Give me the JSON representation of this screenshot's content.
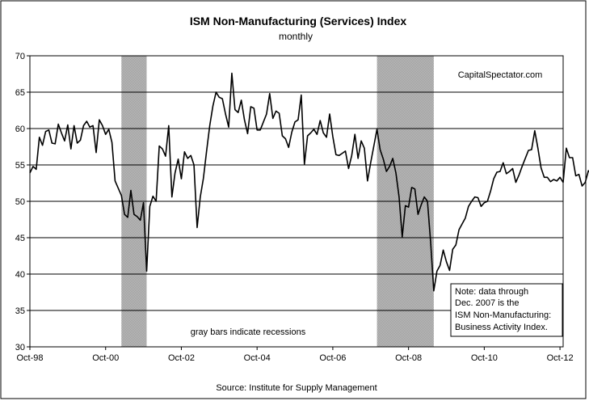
{
  "chart_data": {
    "type": "line",
    "title": "ISM Non-Manufacturing (Services) Index",
    "subtitle": "monthly",
    "source": "Source: Institute for Supply Management",
    "watermark": "CapitalSpectator.com",
    "recession_caption": "gray bars indicate recessions",
    "note_lines": [
      "Note: data through",
      "Dec. 2007 is the",
      "ISM Non-Manufacturing:",
      "Business Activity Index."
    ],
    "ylim": [
      30,
      70
    ],
    "yticks": [
      "30",
      "35",
      "40",
      "45",
      "50",
      "55",
      "60",
      "65",
      "70"
    ],
    "xlim": [
      "1998-10",
      "2012-11"
    ],
    "xticks": [
      {
        "label": "Oct-98",
        "date": "1998-10"
      },
      {
        "label": "Oct-00",
        "date": "2000-10"
      },
      {
        "label": "Oct-02",
        "date": "2002-10"
      },
      {
        "label": "Oct-04",
        "date": "2004-10"
      },
      {
        "label": "Oct-06",
        "date": "2006-10"
      },
      {
        "label": "Oct-08",
        "date": "2008-10"
      },
      {
        "label": "Oct-10",
        "date": "2010-10"
      },
      {
        "label": "Oct-12",
        "date": "2012-10"
      }
    ],
    "grid": true,
    "recessions": [
      {
        "start": "2001-03",
        "end": "2001-11"
      },
      {
        "start": "2007-12",
        "end": "2009-06"
      }
    ],
    "colors": {
      "line": "#000000",
      "recession": "#c0c0c0",
      "grid": "#000000"
    },
    "series": [
      {
        "start": "1998-10",
        "values": [
          53.9,
          54.8,
          54.4,
          58.8,
          57.7,
          59.6,
          59.8,
          58.0,
          57.9,
          60.6,
          59.4,
          58.3,
          60.5,
          57.2,
          60.4,
          58.0,
          58.4,
          60.4,
          61.0,
          60.2,
          60.4,
          56.7,
          61.2,
          60.4,
          59.2,
          59.9,
          58.1,
          52.8,
          51.8,
          50.8,
          48.2,
          47.8,
          51.5,
          48.2,
          47.9,
          47.4,
          49.8,
          40.4,
          49.3,
          50.7,
          50.0,
          57.6,
          57.2,
          56.2,
          60.4,
          50.6,
          53.9,
          55.8,
          53.1,
          56.8,
          55.9,
          56.3,
          55.0,
          46.4,
          50.6,
          53.2,
          56.9,
          60.4,
          63.1,
          65.0,
          64.3,
          64.1,
          62.0,
          60.2,
          67.6,
          62.6,
          62.2,
          63.9,
          61.2,
          59.3,
          63.0,
          62.8,
          59.8,
          59.8,
          60.9,
          62.0,
          64.8,
          61.4,
          62.4,
          62.1,
          59.0,
          58.6,
          57.4,
          59.5,
          60.9,
          61.2,
          64.6,
          55.1,
          59.0,
          59.4,
          59.9,
          59.2,
          61.1,
          59.4,
          58.8,
          62.0,
          58.9,
          56.4,
          56.3,
          56.6,
          56.9,
          54.5,
          56.3,
          59.2,
          55.9,
          58.3,
          57.3,
          52.8,
          55.3,
          57.6,
          59.9,
          57.1,
          55.8,
          54.1,
          54.8,
          55.9,
          53.9,
          50.6,
          45.1,
          49.4,
          49.2,
          51.9,
          51.7,
          48.2,
          49.5,
          50.6,
          50.0,
          44.4,
          37.7,
          40.4,
          41.2,
          43.3,
          41.7,
          40.5,
          43.4,
          44.0,
          46.1,
          46.9,
          47.7,
          49.3,
          50.0,
          50.6,
          50.5,
          49.3,
          49.8,
          50.0,
          51.4,
          53.1,
          54.0,
          54.1,
          55.3,
          53.8,
          54.1,
          54.5,
          52.6,
          53.6,
          54.8,
          55.9,
          57.0,
          57.1,
          59.7,
          57.3,
          54.6,
          53.3,
          53.3,
          52.7,
          53.0,
          52.8,
          53.3,
          52.6,
          57.3,
          56.0,
          56.0,
          53.5,
          53.7,
          52.1,
          52.6,
          54.2,
          53.9,
          54.5,
          55.1,
          54.2
        ]
      }
    ]
  }
}
